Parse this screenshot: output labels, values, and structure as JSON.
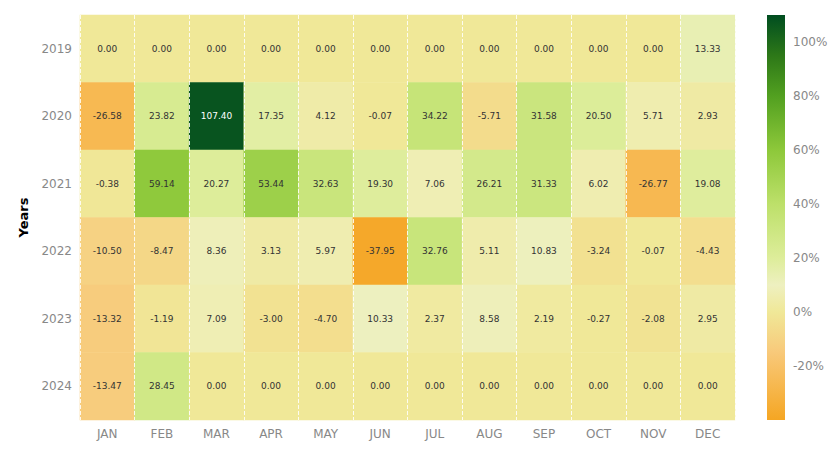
{
  "chart_data": {
    "type": "heatmap",
    "ylabel": "Years",
    "categories": [
      "JAN",
      "FEB",
      "MAR",
      "APR",
      "MAY",
      "JUN",
      "JUL",
      "AUG",
      "SEP",
      "OCT",
      "NOV",
      "DEC"
    ],
    "y_categories": [
      2019,
      2020,
      2021,
      2022,
      2023,
      2024
    ],
    "values": [
      [
        0.0,
        0.0,
        0.0,
        0.0,
        0.0,
        0.0,
        0.0,
        0.0,
        0.0,
        0.0,
        0.0,
        13.33
      ],
      [
        -26.58,
        23.82,
        107.4,
        17.35,
        4.12,
        -0.07,
        34.22,
        -5.71,
        31.58,
        20.5,
        5.71,
        2.93
      ],
      [
        -0.38,
        59.14,
        20.27,
        53.44,
        32.63,
        19.3,
        7.06,
        26.21,
        31.33,
        6.02,
        -26.77,
        19.08
      ],
      [
        -10.5,
        -8.47,
        8.36,
        3.13,
        5.97,
        -37.95,
        32.76,
        5.11,
        10.83,
        -3.24,
        -0.07,
        -4.43
      ],
      [
        -13.32,
        -1.19,
        7.09,
        -3.0,
        -4.7,
        10.33,
        2.37,
        8.58,
        2.19,
        -0.27,
        -2.08,
        2.95
      ],
      [
        -13.47,
        28.45,
        0.0,
        0.0,
        0.0,
        0.0,
        0.0,
        0.0,
        0.0,
        0.0,
        0.0,
        0.0
      ]
    ],
    "value_labels": [
      [
        "0.00",
        "0.00",
        "0.00",
        "0.00",
        "0.00",
        "0.00",
        "0.00",
        "0.00",
        "0.00",
        "0.00",
        "0.00",
        "13.33"
      ],
      [
        "-26.58",
        "23.82",
        "107.40",
        "17.35",
        "4.12",
        "-0.07",
        "34.22",
        "-5.71",
        "31.58",
        "20.50",
        "5.71",
        "2.93"
      ],
      [
        "-0.38",
        "59.14",
        "20.27",
        "53.44",
        "32.63",
        "19.30",
        "7.06",
        "26.21",
        "31.33",
        "6.02",
        "-26.77",
        "19.08"
      ],
      [
        "-10.50",
        "-8.47",
        "8.36",
        "3.13",
        "5.97",
        "-37.95",
        "32.76",
        "5.11",
        "10.83",
        "-3.24",
        "-0.07",
        "-4.43"
      ],
      [
        "-13.32",
        "-1.19",
        "7.09",
        "-3.00",
        "-4.70",
        "10.33",
        "2.37",
        "8.58",
        "2.19",
        "-0.27",
        "-2.08",
        "2.95"
      ],
      [
        "-13.47",
        "28.45",
        "0.00",
        "0.00",
        "0.00",
        "0.00",
        "0.00",
        "0.00",
        "0.00",
        "0.00",
        "0.00",
        "0.00"
      ]
    ],
    "data_labels": true,
    "grid": true,
    "colorbar": {
      "range": [
        -40,
        110
      ],
      "ticks": [
        {
          "value": -20,
          "label": "-20%"
        },
        {
          "value": 0,
          "label": "0%"
        },
        {
          "value": 20,
          "label": "20%"
        },
        {
          "value": 40,
          "label": "40%"
        },
        {
          "value": 60,
          "label": "60%"
        },
        {
          "value": 80,
          "label": "80%"
        },
        {
          "value": 100,
          "label": "100%"
        }
      ],
      "colormap": [
        [
          0.0,
          "#f5a623"
        ],
        [
          0.167,
          "#f8c97a"
        ],
        [
          0.267,
          "#f0e898"
        ],
        [
          0.333,
          "#eef0c0"
        ],
        [
          0.4,
          "#dded9a"
        ],
        [
          0.533,
          "#bde06a"
        ],
        [
          0.667,
          "#8dc83a"
        ],
        [
          0.8,
          "#52a020"
        ],
        [
          0.9,
          "#2d7818"
        ],
        [
          1.0,
          "#004d20"
        ]
      ]
    }
  }
}
